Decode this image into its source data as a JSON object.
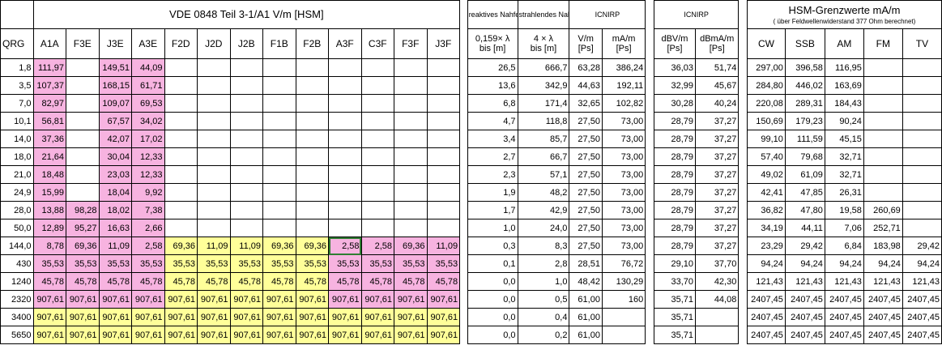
{
  "colors": {
    "pink": "#f7b3e0",
    "yellow": "#ffff99",
    "selection": "#2e7d32"
  },
  "header": {
    "vde_title": "VDE 0848 Teil 3-1/A1 V/m [HSM]",
    "reaktives_label": "reaktives Nahfeld",
    "strahlendes_label": "strahlendes Nahfeld",
    "icnirp_label_1": "ICNIRP",
    "icnirp_label_2": "ICNIRP",
    "hsm_title": "HSM-Grenzwerte mA/m",
    "hsm_subtitle": "( über Feldwellenwiderstand 377 Ohm berechnet)",
    "qrg_label": "QRG",
    "modes": [
      "A1A",
      "F3E",
      "J3E",
      "A3E",
      "F2D",
      "J2D",
      "J2B",
      "F1B",
      "F2B",
      "A3F",
      "C3F",
      "F3F",
      "J3F"
    ],
    "reaktives_formula": "0,159× λ",
    "reaktives_unit": "bis [m]",
    "strahlendes_formula": "4 × λ",
    "strahlendes_unit": "bis [m]",
    "icnirp_vm": "V/m",
    "icnirp_mam": "mA/m",
    "icnirp_ps1": "[Ps]",
    "icnirp_ps2": "[Ps]",
    "icnirp_dbvm": "dBV/m",
    "icnirp_dbmam": "dBmA/m",
    "icnirp_ps3": "[Ps]",
    "icnirp_ps4": "[Ps]",
    "hsm_cols": [
      "CW",
      "SSB",
      "AM",
      "FM",
      "TV"
    ]
  },
  "rows": [
    {
      "qrg": "1,8",
      "modes": [
        "111,97",
        "",
        "149,51",
        "44,09",
        "",
        "",
        "",
        "",
        "",
        "",
        "",
        "",
        ""
      ],
      "reaktiv": "26,5",
      "strahlend": "666,7",
      "vm": "63,28",
      "mam": "386,24",
      "dbvm": "36,03",
      "dbmam": "51,74",
      "hsm": [
        "297,00",
        "396,58",
        "116,95",
        "",
        ""
      ]
    },
    {
      "qrg": "3,5",
      "modes": [
        "107,37",
        "",
        "168,15",
        "61,71",
        "",
        "",
        "",
        "",
        "",
        "",
        "",
        "",
        ""
      ],
      "reaktiv": "13,6",
      "strahlend": "342,9",
      "vm": "44,63",
      "mam": "192,11",
      "dbvm": "32,99",
      "dbmam": "45,67",
      "hsm": [
        "284,80",
        "446,02",
        "163,69",
        "",
        ""
      ]
    },
    {
      "qrg": "7,0",
      "modes": [
        "82,97",
        "",
        "109,07",
        "69,53",
        "",
        "",
        "",
        "",
        "",
        "",
        "",
        "",
        ""
      ],
      "reaktiv": "6,8",
      "strahlend": "171,4",
      "vm": "32,65",
      "mam": "102,82",
      "dbvm": "30,28",
      "dbmam": "40,24",
      "hsm": [
        "220,08",
        "289,31",
        "184,43",
        "",
        ""
      ]
    },
    {
      "qrg": "10,1",
      "modes": [
        "56,81",
        "",
        "67,57",
        "34,02",
        "",
        "",
        "",
        "",
        "",
        "",
        "",
        "",
        ""
      ],
      "reaktiv": "4,7",
      "strahlend": "118,8",
      "vm": "27,50",
      "mam": "73,00",
      "dbvm": "28,79",
      "dbmam": "37,27",
      "hsm": [
        "150,69",
        "179,23",
        "90,24",
        "",
        ""
      ]
    },
    {
      "qrg": "14,0",
      "modes": [
        "37,36",
        "",
        "42,07",
        "17,02",
        "",
        "",
        "",
        "",
        "",
        "",
        "",
        "",
        ""
      ],
      "reaktiv": "3,4",
      "strahlend": "85,7",
      "vm": "27,50",
      "mam": "73,00",
      "dbvm": "28,79",
      "dbmam": "37,27",
      "hsm": [
        "99,10",
        "111,59",
        "45,15",
        "",
        ""
      ]
    },
    {
      "qrg": "18,0",
      "modes": [
        "21,64",
        "",
        "30,04",
        "12,33",
        "",
        "",
        "",
        "",
        "",
        "",
        "",
        "",
        ""
      ],
      "reaktiv": "2,7",
      "strahlend": "66,7",
      "vm": "27,50",
      "mam": "73,00",
      "dbvm": "28,79",
      "dbmam": "37,27",
      "hsm": [
        "57,40",
        "79,68",
        "32,71",
        "",
        ""
      ]
    },
    {
      "qrg": "21,0",
      "modes": [
        "18,48",
        "",
        "23,03",
        "12,33",
        "",
        "",
        "",
        "",
        "",
        "",
        "",
        "",
        ""
      ],
      "reaktiv": "2,3",
      "strahlend": "57,1",
      "vm": "27,50",
      "mam": "73,00",
      "dbvm": "28,79",
      "dbmam": "37,27",
      "hsm": [
        "49,02",
        "61,09",
        "32,71",
        "",
        ""
      ]
    },
    {
      "qrg": "24,9",
      "modes": [
        "15,99",
        "",
        "18,04",
        "9,92",
        "",
        "",
        "",
        "",
        "",
        "",
        "",
        "",
        ""
      ],
      "reaktiv": "1,9",
      "strahlend": "48,2",
      "vm": "27,50",
      "mam": "73,00",
      "dbvm": "28,79",
      "dbmam": "37,27",
      "hsm": [
        "42,41",
        "47,85",
        "26,31",
        "",
        ""
      ]
    },
    {
      "qrg": "28,0",
      "modes": [
        "13,88",
        "98,28",
        "18,02",
        "7,38",
        "",
        "",
        "",
        "",
        "",
        "",
        "",
        "",
        ""
      ],
      "reaktiv": "1,7",
      "strahlend": "42,9",
      "vm": "27,50",
      "mam": "73,00",
      "dbvm": "28,79",
      "dbmam": "37,27",
      "hsm": [
        "36,82",
        "47,80",
        "19,58",
        "260,69",
        ""
      ]
    },
    {
      "qrg": "50,0",
      "modes": [
        "12,89",
        "95,27",
        "16,63",
        "2,66",
        "",
        "",
        "",
        "",
        "",
        "",
        "",
        "",
        ""
      ],
      "reaktiv": "1,0",
      "strahlend": "24,0",
      "vm": "27,50",
      "mam": "73,00",
      "dbvm": "28,79",
      "dbmam": "37,27",
      "hsm": [
        "34,19",
        "44,11",
        "7,06",
        "252,71",
        ""
      ]
    },
    {
      "qrg": "144,0",
      "modes": [
        "8,78",
        "69,36",
        "11,09",
        "2,58",
        "69,36",
        "11,09",
        "11,09",
        "69,36",
        "69,36",
        "2,58",
        "2,58",
        "69,36",
        "11,09"
      ],
      "reaktiv": "0,3",
      "strahlend": "8,3",
      "vm": "27,50",
      "mam": "73,00",
      "dbvm": "28,79",
      "dbmam": "37,27",
      "hsm": [
        "23,29",
        "29,42",
        "6,84",
        "183,98",
        "29,42"
      ]
    },
    {
      "qrg": "430",
      "modes": [
        "35,53",
        "35,53",
        "35,53",
        "35,53",
        "35,53",
        "35,53",
        "35,53",
        "35,53",
        "35,53",
        "35,53",
        "35,53",
        "35,53",
        "35,53"
      ],
      "reaktiv": "0,1",
      "strahlend": "2,8",
      "vm": "28,51",
      "mam": "76,72",
      "dbvm": "29,10",
      "dbmam": "37,70",
      "hsm": [
        "94,24",
        "94,24",
        "94,24",
        "94,24",
        "94,24"
      ]
    },
    {
      "qrg": "1240",
      "modes": [
        "45,78",
        "45,78",
        "45,78",
        "45,78",
        "45,78",
        "45,78",
        "45,78",
        "45,78",
        "45,78",
        "45,78",
        "45,78",
        "45,78",
        "45,78"
      ],
      "reaktiv": "0,0",
      "strahlend": "1,0",
      "vm": "48,42",
      "mam": "130,29",
      "dbvm": "33,70",
      "dbmam": "42,30",
      "hsm": [
        "121,43",
        "121,43",
        "121,43",
        "121,43",
        "121,43"
      ]
    },
    {
      "qrg": "2320",
      "modes": [
        "907,61",
        "907,61",
        "907,61",
        "907,61",
        "907,61",
        "907,61",
        "907,61",
        "907,61",
        "907,61",
        "907,61",
        "907,61",
        "907,61",
        "907,61"
      ],
      "reaktiv": "0,0",
      "strahlend": "0,5",
      "vm": "61,00",
      "mam": "160",
      "dbvm": "35,71",
      "dbmam": "44,08",
      "hsm": [
        "2407,45",
        "2407,45",
        "2407,45",
        "2407,45",
        "2407,45"
      ]
    },
    {
      "qrg": "3400",
      "modes": [
        "907,61",
        "907,61",
        "907,61",
        "907,61",
        "907,61",
        "907,61",
        "907,61",
        "907,61",
        "907,61",
        "907,61",
        "907,61",
        "907,61",
        "907,61"
      ],
      "reaktiv": "0,0",
      "strahlend": "0,4",
      "vm": "61,00",
      "mam": "",
      "dbvm": "35,71",
      "dbmam": "",
      "hsm": [
        "2407,45",
        "2407,45",
        "2407,45",
        "2407,45",
        "2407,45"
      ]
    },
    {
      "qrg": "5650",
      "modes": [
        "907,61",
        "907,61",
        "907,61",
        "907,61",
        "907,61",
        "907,61",
        "907,61",
        "907,61",
        "907,61",
        "907,61",
        "907,61",
        "907,61",
        "907,61"
      ],
      "reaktiv": "0,0",
      "strahlend": "0,2",
      "vm": "61,00",
      "mam": "",
      "dbvm": "35,71",
      "dbmam": "",
      "hsm": [
        "2407,45",
        "2407,45",
        "2407,45",
        "2407,45",
        "2407,45"
      ]
    }
  ],
  "cell_colors": [
    [
      "pink",
      "",
      "pink",
      "pink",
      "",
      "",
      "",
      "",
      "",
      "",
      "",
      "",
      ""
    ],
    [
      "pink",
      "",
      "pink",
      "pink",
      "",
      "",
      "",
      "",
      "",
      "",
      "",
      "",
      ""
    ],
    [
      "pink",
      "",
      "pink",
      "pink",
      "",
      "",
      "",
      "",
      "",
      "",
      "",
      "",
      ""
    ],
    [
      "pink",
      "",
      "pink",
      "pink",
      "",
      "",
      "",
      "",
      "",
      "",
      "",
      "",
      ""
    ],
    [
      "pink",
      "",
      "pink",
      "pink",
      "",
      "",
      "",
      "",
      "",
      "",
      "",
      "",
      ""
    ],
    [
      "pink",
      "",
      "pink",
      "pink",
      "",
      "",
      "",
      "",
      "",
      "",
      "",
      "",
      ""
    ],
    [
      "pink",
      "",
      "pink",
      "pink",
      "",
      "",
      "",
      "",
      "",
      "",
      "",
      "",
      ""
    ],
    [
      "pink",
      "",
      "pink",
      "pink",
      "",
      "",
      "",
      "",
      "",
      "",
      "",
      "",
      ""
    ],
    [
      "pink",
      "pink",
      "pink",
      "pink",
      "",
      "",
      "",
      "",
      "",
      "",
      "",
      "",
      ""
    ],
    [
      "pink",
      "pink",
      "pink",
      "pink",
      "",
      "",
      "",
      "",
      "",
      "",
      "",
      "",
      ""
    ],
    [
      "pink",
      "pink",
      "pink",
      "pink",
      "yellow",
      "yellow",
      "yellow",
      "yellow",
      "yellow",
      "pink",
      "pink",
      "pink",
      "pink"
    ],
    [
      "pink",
      "pink",
      "pink",
      "pink",
      "yellow",
      "yellow",
      "yellow",
      "yellow",
      "yellow",
      "pink",
      "pink",
      "pink",
      "pink"
    ],
    [
      "pink",
      "pink",
      "pink",
      "pink",
      "yellow",
      "yellow",
      "yellow",
      "yellow",
      "yellow",
      "pink",
      "pink",
      "pink",
      "pink"
    ],
    [
      "pink",
      "pink",
      "pink",
      "pink",
      "yellow",
      "yellow",
      "yellow",
      "yellow",
      "yellow",
      "pink",
      "pink",
      "pink",
      "pink"
    ],
    [
      "yellow",
      "yellow",
      "yellow",
      "yellow",
      "yellow",
      "yellow",
      "yellow",
      "yellow",
      "yellow",
      "yellow",
      "yellow",
      "yellow",
      "yellow"
    ],
    [
      "yellow",
      "yellow",
      "yellow",
      "yellow",
      "yellow",
      "yellow",
      "yellow",
      "yellow",
      "yellow",
      "yellow",
      "yellow",
      "yellow",
      "yellow"
    ]
  ]
}
